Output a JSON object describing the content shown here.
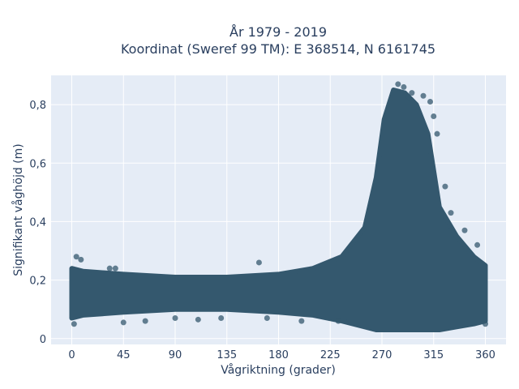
{
  "chart_data": {
    "type": "scatter",
    "title_lines": [
      "År 1979 - 2019",
      "Koordinat (Sweref 99 TM): E 368514, N 6161745"
    ],
    "xlabel": "Vågriktning (grader)",
    "ylabel": "Signifikant våghöjd (m)",
    "xlim": [
      -18,
      378
    ],
    "ylim": [
      -0.02,
      0.9
    ],
    "xticks": [
      0,
      45,
      90,
      135,
      180,
      225,
      270,
      315,
      360
    ],
    "yticks": [
      0,
      0.2,
      0.4,
      0.6,
      0.8
    ],
    "ytick_labels": [
      "0",
      "0,2",
      "0,4",
      "0,6",
      "0,8"
    ],
    "grid": true,
    "marker_color": "#34586e",
    "plot_background": "#e5ecf6",
    "band_profile": [
      {
        "x": 0,
        "y_min": 0.07,
        "y_max": 0.24
      },
      {
        "x": 10,
        "y_min": 0.08,
        "y_max": 0.23
      },
      {
        "x": 45,
        "y_min": 0.09,
        "y_max": 0.22
      },
      {
        "x": 90,
        "y_min": 0.1,
        "y_max": 0.21
      },
      {
        "x": 135,
        "y_min": 0.1,
        "y_max": 0.21
      },
      {
        "x": 180,
        "y_min": 0.09,
        "y_max": 0.22
      },
      {
        "x": 210,
        "y_min": 0.08,
        "y_max": 0.24
      },
      {
        "x": 235,
        "y_min": 0.06,
        "y_max": 0.28
      },
      {
        "x": 255,
        "y_min": 0.04,
        "y_max": 0.38
      },
      {
        "x": 265,
        "y_min": 0.03,
        "y_max": 0.55
      },
      {
        "x": 272,
        "y_min": 0.03,
        "y_max": 0.75
      },
      {
        "x": 280,
        "y_min": 0.03,
        "y_max": 0.85
      },
      {
        "x": 290,
        "y_min": 0.03,
        "y_max": 0.84
      },
      {
        "x": 300,
        "y_min": 0.03,
        "y_max": 0.8
      },
      {
        "x": 310,
        "y_min": 0.03,
        "y_max": 0.7
      },
      {
        "x": 320,
        "y_min": 0.03,
        "y_max": 0.45
      },
      {
        "x": 335,
        "y_min": 0.04,
        "y_max": 0.35
      },
      {
        "x": 350,
        "y_min": 0.05,
        "y_max": 0.28
      },
      {
        "x": 360,
        "y_min": 0.06,
        "y_max": 0.25
      }
    ],
    "outliers": [
      {
        "x": 4,
        "y": 0.28
      },
      {
        "x": 8,
        "y": 0.27
      },
      {
        "x": 33,
        "y": 0.24
      },
      {
        "x": 38,
        "y": 0.24
      },
      {
        "x": 45,
        "y": 0.055
      },
      {
        "x": 64,
        "y": 0.06
      },
      {
        "x": 90,
        "y": 0.07
      },
      {
        "x": 130,
        "y": 0.07
      },
      {
        "x": 163,
        "y": 0.26
      },
      {
        "x": 170,
        "y": 0.07
      },
      {
        "x": 200,
        "y": 0.06
      },
      {
        "x": 232,
        "y": 0.06
      },
      {
        "x": 284,
        "y": 0.87
      },
      {
        "x": 289,
        "y": 0.86
      },
      {
        "x": 296,
        "y": 0.84
      },
      {
        "x": 306,
        "y": 0.83
      },
      {
        "x": 312,
        "y": 0.81
      },
      {
        "x": 315,
        "y": 0.76
      },
      {
        "x": 318,
        "y": 0.7
      },
      {
        "x": 325,
        "y": 0.52
      },
      {
        "x": 330,
        "y": 0.43
      },
      {
        "x": 342,
        "y": 0.37
      },
      {
        "x": 353,
        "y": 0.32
      },
      {
        "x": 360,
        "y": 0.05
      },
      {
        "x": 2,
        "y": 0.05
      },
      {
        "x": 110,
        "y": 0.065
      }
    ]
  }
}
